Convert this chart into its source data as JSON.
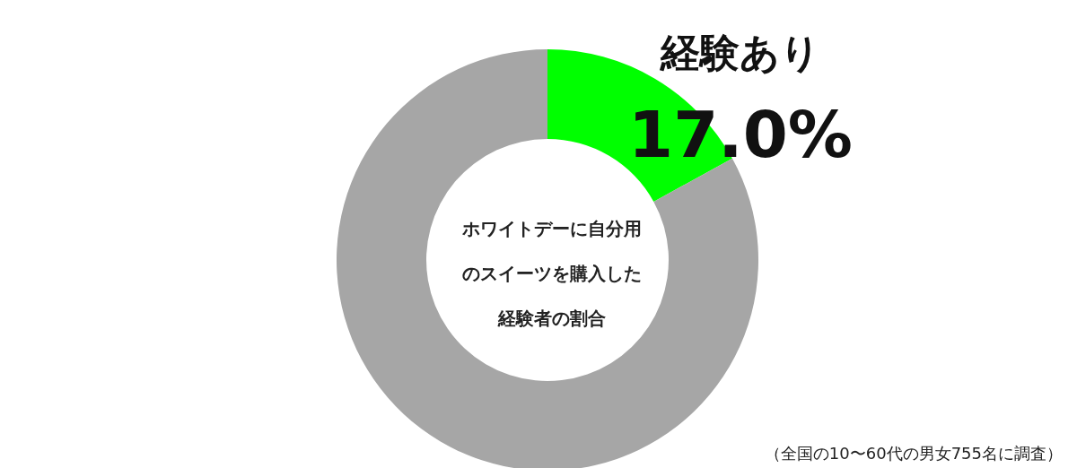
{
  "chart_data": {
    "type": "donut",
    "title": "ホワイトデーに自分用のスイーツを購入した経験者の割合",
    "categories": [
      "経験あり",
      null
    ],
    "values": [
      17.0,
      83.0
    ],
    "colors": [
      "#00ff00",
      "#a6a6a6"
    ],
    "value_labels": [
      "17.0%",
      null
    ],
    "legend": false,
    "annotations": [
      "（全国の10〜60代の男女755名に調査）"
    ]
  }
}
